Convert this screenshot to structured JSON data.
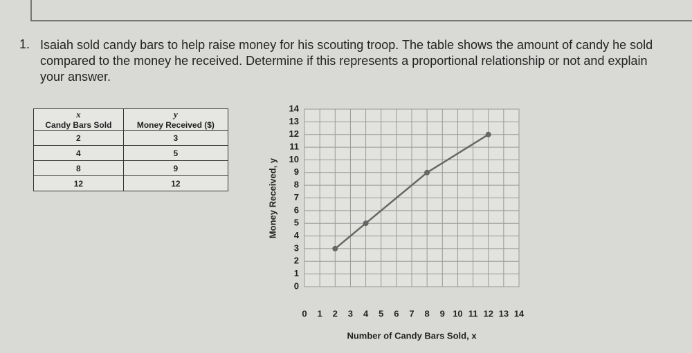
{
  "question": {
    "number": "1.",
    "text": "Isaiah sold candy bars to help raise money for his scouting troop. The table shows the amount of candy he sold compared to the money he received. Determine if this represents a proportional relationship or not and explain your answer."
  },
  "table": {
    "variables": [
      "x",
      "y"
    ],
    "header": [
      "Candy Bars Sold",
      "Money Received ($)"
    ],
    "rows": [
      [
        2,
        3
      ],
      [
        4,
        5
      ],
      [
        8,
        9
      ],
      [
        12,
        12
      ]
    ]
  },
  "chart_data": {
    "type": "line",
    "x_label": "Number of Candy Bars Sold, x",
    "y_label": "Money Received, y",
    "x": [
      2,
      4,
      8,
      12
    ],
    "values": [
      3,
      5,
      9,
      12
    ],
    "color": "#666666",
    "xlim": [
      0,
      14
    ],
    "ylim": [
      0,
      14
    ],
    "xticks": [
      0,
      1,
      2,
      3,
      4,
      5,
      6,
      7,
      8,
      9,
      10,
      11,
      12,
      13,
      14
    ],
    "yticks": [
      0,
      1,
      2,
      3,
      4,
      5,
      6,
      7,
      8,
      9,
      10,
      11,
      12,
      13,
      14
    ],
    "grid": true
  }
}
